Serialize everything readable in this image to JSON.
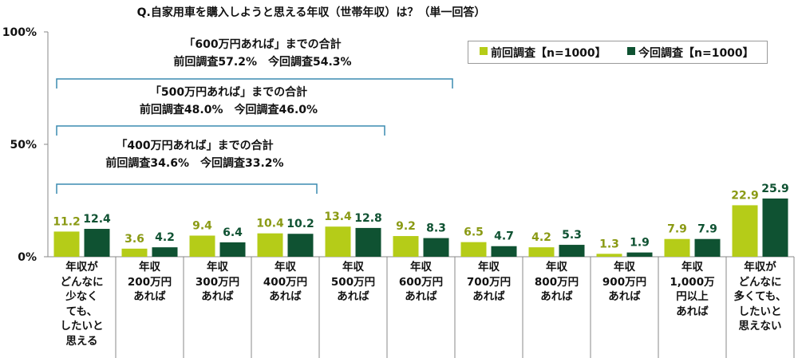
{
  "chart_data": {
    "type": "bar",
    "title": "Q.自家用車を購入しようと思える年収（世帯年収）は？（単一回答）",
    "yticks": [
      "0%",
      "50%",
      "100%"
    ],
    "ylim": [
      0,
      100
    ],
    "categories": [
      "年収が\nどんなに\n少なく\nても、\nしたいと\n思える",
      "年収\n200万円\nあれば",
      "年収\n300万円\nあれば",
      "年収\n400万円\nあれば",
      "年収\n500万円\nあれば",
      "年収\n600万円\nあれば",
      "年収\n700万円\nあれば",
      "年収\n800万円\nあれば",
      "年収\n900万円\nあれば",
      "年収\n1,000万\n円以上\nあれば",
      "年収が\nどんなに\n多くても、\nしたいと\n思えない"
    ],
    "series": [
      {
        "name": "前回調査【n=1000】",
        "color": "#b5cc18",
        "labels": [
          "11.2",
          "3.6",
          "9.4",
          "10.4",
          "13.4",
          "9.2",
          "6.5",
          "4.2",
          "1.3",
          "7.9",
          "22.9"
        ],
        "values": [
          11.2,
          3.6,
          9.4,
          10.4,
          13.4,
          9.2,
          6.5,
          4.2,
          1.3,
          7.9,
          22.9
        ]
      },
      {
        "name": "今回調査【n=1000】",
        "color": "#0f5232",
        "labels": [
          "12.4",
          "4.2",
          "6.4",
          "10.2",
          "12.8",
          "8.3",
          "4.7",
          "5.3",
          "1.9",
          "7.9",
          "25.9"
        ],
        "values": [
          12.4,
          4.2,
          6.4,
          10.2,
          12.8,
          8.3,
          4.7,
          5.3,
          1.9,
          7.9,
          25.9
        ]
      }
    ],
    "label_colors": {
      "previous": "#8a9a14",
      "current": "#0f5232"
    },
    "annotations": [
      {
        "line1": "「600万円あれば」までの合計",
        "line2": "前回調査57.2%　今回調査54.3%",
        "from_category": 0,
        "to_category": 5
      },
      {
        "line1": "「500万円あれば」までの合計",
        "line2": "前回調査48.0%　今回調査46.0%",
        "from_category": 0,
        "to_category": 4
      },
      {
        "line1": "「400万円あれば」までの合計",
        "line2": "前回調査34.6%　今回調査33.2%",
        "from_category": 0,
        "to_category": 3
      }
    ]
  }
}
